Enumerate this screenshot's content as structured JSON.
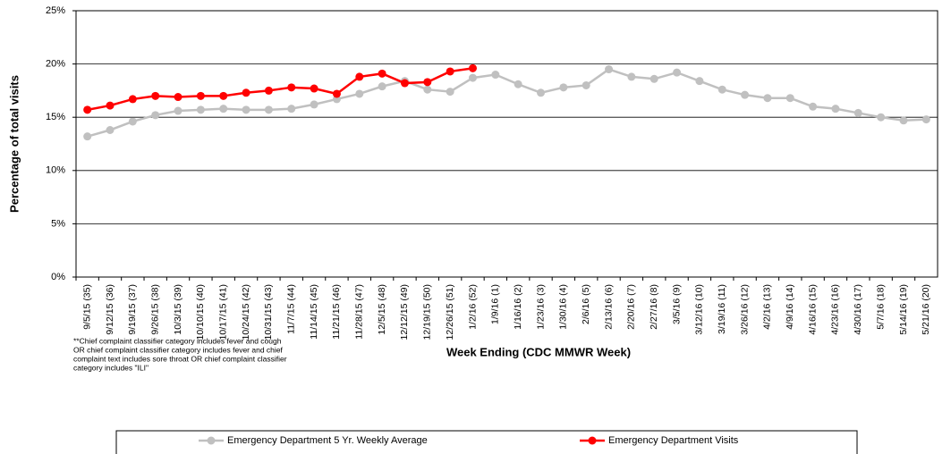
{
  "chart_data": {
    "type": "line",
    "x_label": "Week Ending (CDC MMWR Week)",
    "y_label": "Percentage of total visits",
    "footnote": [
      "**Chief complaint classifier category includes fever and cough",
      "OR chief complaint classifier category includes fever and chief",
      "complaint text includes sore throat OR chief complaint classifier",
      "category includes \"ILI\""
    ],
    "categories": [
      "9/5/15 (35)",
      "9/12/15 (36)",
      "9/19/15 (37)",
      "9/26/15 (38)",
      "10/3/15 (39)",
      "10/10/15 (40)",
      "10/17/15 (41)",
      "10/24/15 (42)",
      "10/31/15 (43)",
      "11/7/15 (44)",
      "11/14/15 (45)",
      "11/21/15 (46)",
      "11/28/15 (47)",
      "12/5/15 (48)",
      "12/12/15 (49)",
      "12/19/15 (50)",
      "12/26/15 (51)",
      "1/2/16 (52)",
      "1/9/16 (1)",
      "1/16/16 (2)",
      "1/23/16 (3)",
      "1/30/16 (4)",
      "2/6/16 (5)",
      "2/13/16 (6)",
      "2/20/16 (7)",
      "2/27/16 (8)",
      "3/5/16 (9)",
      "3/12/16 (10)",
      "3/19/16 (11)",
      "3/26/16 (12)",
      "4/2/16 (13)",
      "4/9/16 (14)",
      "4/16/16 (15)",
      "4/23/16 (16)",
      "4/30/16 (17)",
      "5/7/16 (18)",
      "5/14/16 (19)",
      "5/21/16 (20)"
    ],
    "series": [
      {
        "name": "Emergency Department 5 Yr. Weekly Average",
        "color": "#c0c0c0",
        "values": [
          13.2,
          13.8,
          14.6,
          15.2,
          15.6,
          15.7,
          15.8,
          15.7,
          15.7,
          15.8,
          16.2,
          16.7,
          17.2,
          17.9,
          18.4,
          17.6,
          17.4,
          18.7,
          19.0,
          18.1,
          17.3,
          17.8,
          18.0,
          19.5,
          18.8,
          18.6,
          19.2,
          18.4,
          17.6,
          17.1,
          16.8,
          16.8,
          16.0,
          15.8,
          15.4,
          15.0,
          14.7,
          14.8
        ]
      },
      {
        "name": "Emergency Department Visits",
        "color": "#ff0000",
        "values": [
          15.7,
          16.1,
          16.7,
          17.0,
          16.9,
          17.0,
          17.0,
          17.3,
          17.5,
          17.8,
          17.7,
          17.2,
          18.8,
          19.1,
          18.2,
          18.3,
          19.3,
          19.6,
          null,
          null,
          null,
          null,
          null,
          null,
          null,
          null,
          null,
          null,
          null,
          null,
          null,
          null,
          null,
          null,
          null,
          null,
          null,
          null
        ]
      }
    ],
    "ylim": [
      0,
      25
    ],
    "yticks": [
      {
        "value": 0,
        "label": "0%"
      },
      {
        "value": 5,
        "label": "5%"
      },
      {
        "value": 10,
        "label": "10%"
      },
      {
        "value": 15,
        "label": "15%"
      },
      {
        "value": 20,
        "label": "20%"
      },
      {
        "value": 25,
        "label": "25%"
      }
    ],
    "grid": true
  }
}
